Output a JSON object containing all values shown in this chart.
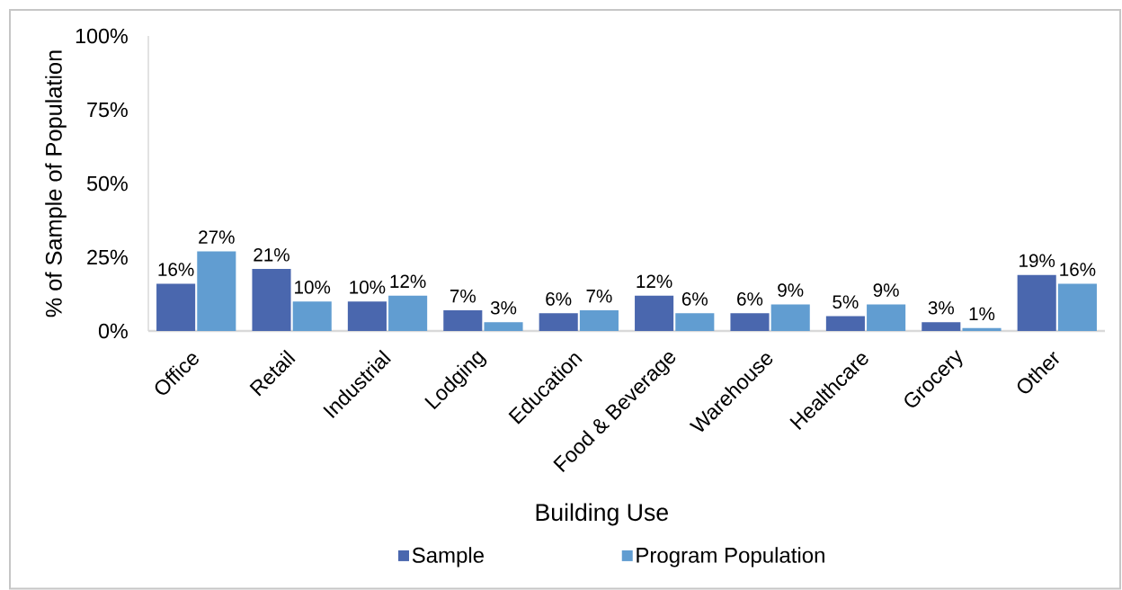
{
  "chart_data": {
    "type": "bar",
    "xlabel": "Building Use",
    "ylabel": "% of Sample of Population",
    "categories": [
      "Office",
      "Retail",
      "Industrial",
      "Lodging",
      "Education",
      "Food & Beverage",
      "Warehouse",
      "Healthcare",
      "Grocery",
      "Other"
    ],
    "series": [
      {
        "name": "Sample",
        "color": "#4a67ae",
        "values": [
          16,
          21,
          10,
          7,
          6,
          12,
          6,
          5,
          3,
          19
        ],
        "value_labels": [
          "16%",
          "21%",
          "10%",
          "7%",
          "6%",
          "12%",
          "6%",
          "5%",
          "3%",
          "19%"
        ]
      },
      {
        "name": "Program Population",
        "color": "#619dd1",
        "values": [
          27,
          10,
          12,
          3,
          7,
          6,
          9,
          9,
          1,
          16
        ],
        "value_labels": [
          "27%",
          "10%",
          "12%",
          "3%",
          "7%",
          "6%",
          "9%",
          "9%",
          "1%",
          "16%"
        ]
      }
    ],
    "ylim": [
      0,
      100
    ],
    "yticks": [
      {
        "value": 0,
        "label": "0%"
      },
      {
        "value": 25,
        "label": "25%"
      },
      {
        "value": 50,
        "label": "50%"
      },
      {
        "value": 75,
        "label": "75%"
      },
      {
        "value": 100,
        "label": "100%"
      }
    ],
    "legend": "bottom"
  }
}
